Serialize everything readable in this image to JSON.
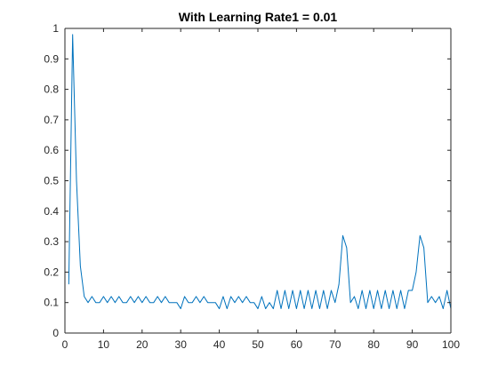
{
  "chart_data": {
    "type": "line",
    "title": "With Learning Rate1 = 0.01",
    "xlabel": "",
    "ylabel": "",
    "xlim": [
      0,
      100
    ],
    "ylim": [
      0,
      1
    ],
    "x_ticks": [
      0,
      10,
      20,
      30,
      40,
      50,
      60,
      70,
      80,
      90,
      100
    ],
    "x_tick_labels": [
      "0",
      "10",
      "20",
      "30",
      "40",
      "50",
      "60",
      "70",
      "80",
      "90",
      "100"
    ],
    "y_ticks": [
      0,
      0.1,
      0.2,
      0.3,
      0.4,
      0.5,
      0.6,
      0.7,
      0.8,
      0.9,
      1
    ],
    "y_tick_labels": [
      "0",
      "0.1",
      "0.2",
      "0.3",
      "0.4",
      "0.5",
      "0.6",
      "0.7",
      "0.8",
      "0.9",
      "1"
    ],
    "grid": false,
    "box": true,
    "series": [
      {
        "color": "#0072bd",
        "x": [
          1,
          2,
          3,
          4,
          5,
          6,
          7,
          8,
          9,
          10,
          11,
          12,
          13,
          14,
          15,
          16,
          17,
          18,
          19,
          20,
          21,
          22,
          23,
          24,
          25,
          26,
          27,
          28,
          29,
          30,
          31,
          32,
          33,
          34,
          35,
          36,
          37,
          38,
          39,
          40,
          41,
          42,
          43,
          44,
          45,
          46,
          47,
          48,
          49,
          50,
          51,
          52,
          53,
          54,
          55,
          56,
          57,
          58,
          59,
          60,
          61,
          62,
          63,
          64,
          65,
          66,
          67,
          68,
          69,
          70,
          71,
          72,
          73,
          74,
          75,
          76,
          77,
          78,
          79,
          80,
          81,
          82,
          83,
          84,
          85,
          86,
          87,
          88,
          89,
          90,
          91,
          92,
          93,
          94,
          95,
          96,
          97,
          98,
          99,
          100
        ],
        "values": [
          0.16,
          0.98,
          0.5,
          0.22,
          0.12,
          0.1,
          0.12,
          0.1,
          0.1,
          0.12,
          0.1,
          0.12,
          0.1,
          0.12,
          0.1,
          0.1,
          0.12,
          0.1,
          0.12,
          0.1,
          0.12,
          0.1,
          0.1,
          0.12,
          0.1,
          0.12,
          0.1,
          0.1,
          0.1,
          0.08,
          0.12,
          0.1,
          0.1,
          0.12,
          0.1,
          0.12,
          0.1,
          0.1,
          0.1,
          0.08,
          0.12,
          0.08,
          0.12,
          0.1,
          0.12,
          0.1,
          0.12,
          0.1,
          0.1,
          0.08,
          0.12,
          0.08,
          0.1,
          0.08,
          0.14,
          0.08,
          0.14,
          0.08,
          0.14,
          0.08,
          0.14,
          0.08,
          0.14,
          0.08,
          0.14,
          0.08,
          0.14,
          0.08,
          0.14,
          0.1,
          0.16,
          0.32,
          0.28,
          0.1,
          0.12,
          0.08,
          0.14,
          0.08,
          0.14,
          0.08,
          0.14,
          0.08,
          0.14,
          0.08,
          0.14,
          0.08,
          0.14,
          0.08,
          0.14,
          0.14,
          0.2,
          0.32,
          0.28,
          0.1,
          0.12,
          0.1,
          0.12,
          0.08,
          0.14,
          0.08
        ]
      }
    ]
  }
}
